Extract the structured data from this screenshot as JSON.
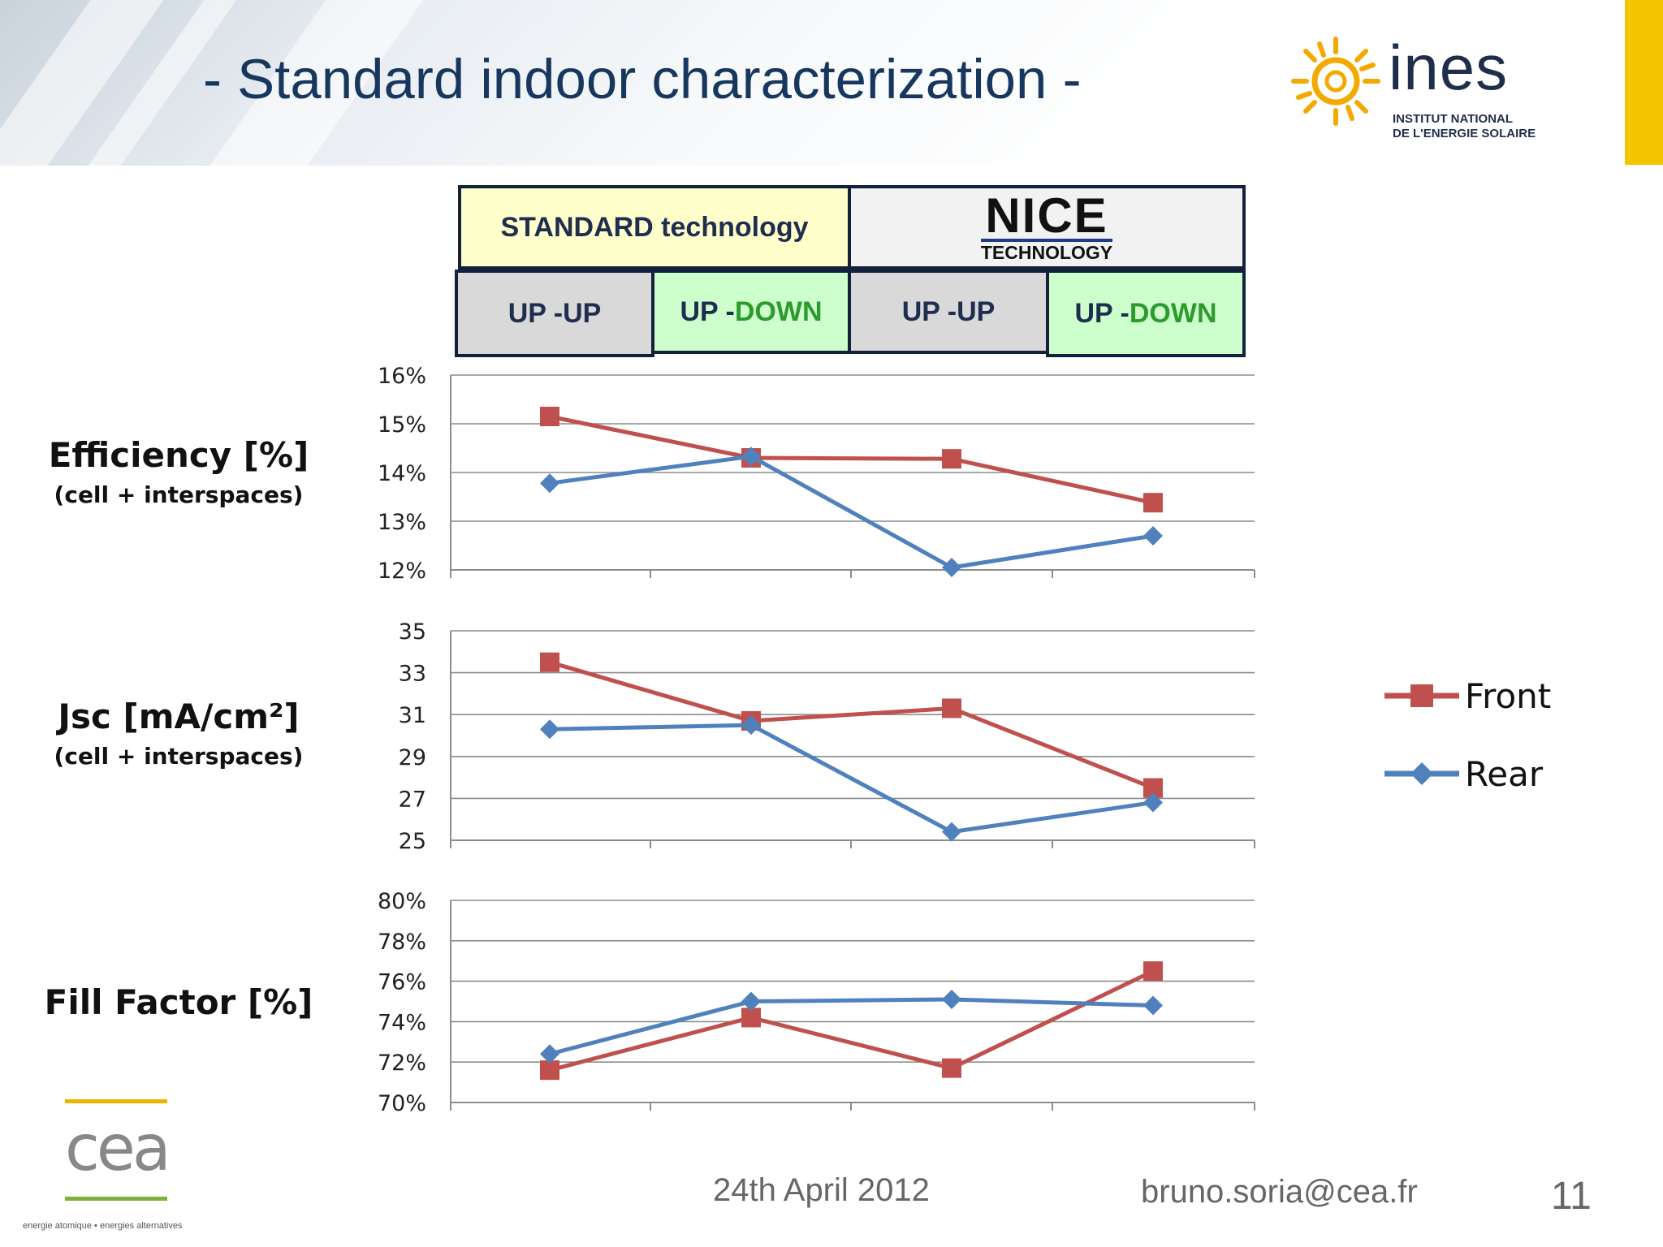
{
  "slide": {
    "title": "- Standard indoor characterization -",
    "footer_date": "24th April 2012",
    "footer_email": "bruno.soria@cea.fr",
    "page_number": "11"
  },
  "colors": {
    "title": "#17375e",
    "front": "#c0504d",
    "rear": "#4f81bd",
    "accent": "#f5c400",
    "standard_fill": "#ffffcc",
    "updown_fill": "#ccffcc",
    "upup_fill": "#d9d9d9"
  },
  "logos": {
    "ines_word": "ines",
    "ines_sub_line1": "INSTITUT NATIONAL",
    "ines_sub_line2": "DE L'ENERGIE SOLAIRE",
    "nice_word": "NICE",
    "nice_sub": "TECHNOLOGY",
    "cea_word": "cea",
    "cea_tagline": "energie atomique • energies alternatives"
  },
  "table_header": {
    "standard": "STANDARD technology",
    "cols": [
      {
        "a": "UP - ",
        "b": "UP",
        "green": false
      },
      {
        "a": "UP - ",
        "b": "DOWN",
        "green": true
      },
      {
        "a": "UP - ",
        "b": "UP",
        "green": false
      },
      {
        "a": "UP - ",
        "b": "DOWN",
        "green": true
      }
    ]
  },
  "row_labels": {
    "efficiency": "Efficiency [%]",
    "efficiency_sub": "(cell + interspaces)",
    "jsc": "Jsc [mA/cm²]",
    "jsc_sub": "(cell + interspaces)",
    "ff": "Fill Factor [%]"
  },
  "legend": [
    "Front",
    "Rear"
  ],
  "chart_data": [
    {
      "type": "line",
      "id": "efficiency",
      "categories": [
        "UP - UP",
        "UP - DOWN",
        "UP - UP",
        "UP - DOWN"
      ],
      "ylim": [
        12,
        16
      ],
      "yticks": [
        12,
        13,
        14,
        15,
        16
      ],
      "ytick_labels": [
        "12%",
        "13%",
        "14%",
        "15%",
        "16%"
      ],
      "grid": true,
      "series": [
        {
          "name": "Front",
          "values": [
            15.15,
            14.3,
            14.28,
            13.38
          ]
        },
        {
          "name": "Rear",
          "values": [
            13.78,
            14.33,
            12.05,
            12.7
          ]
        }
      ]
    },
    {
      "type": "line",
      "id": "jsc",
      "categories": [
        "UP - UP",
        "UP - DOWN",
        "UP - UP",
        "UP - DOWN"
      ],
      "ylim": [
        25,
        35
      ],
      "yticks": [
        25,
        27,
        29,
        31,
        33,
        35
      ],
      "ytick_labels": [
        "25",
        "27",
        "29",
        "31",
        "33",
        "35"
      ],
      "grid": true,
      "series": [
        {
          "name": "Front",
          "values": [
            33.5,
            30.7,
            31.3,
            27.5
          ]
        },
        {
          "name": "Rear",
          "values": [
            30.3,
            30.5,
            25.4,
            26.8
          ]
        }
      ]
    },
    {
      "type": "line",
      "id": "ff",
      "categories": [
        "UP - UP",
        "UP - DOWN",
        "UP - UP",
        "UP - DOWN"
      ],
      "ylim": [
        70,
        80
      ],
      "yticks": [
        70,
        72,
        74,
        76,
        78,
        80
      ],
      "ytick_labels": [
        "70%",
        "72%",
        "74%",
        "76%",
        "78%",
        "80%"
      ],
      "grid": true,
      "series": [
        {
          "name": "Front",
          "values": [
            71.6,
            74.2,
            71.7,
            76.5
          ]
        },
        {
          "name": "Rear",
          "values": [
            72.4,
            75.0,
            75.1,
            74.8
          ]
        }
      ]
    }
  ]
}
